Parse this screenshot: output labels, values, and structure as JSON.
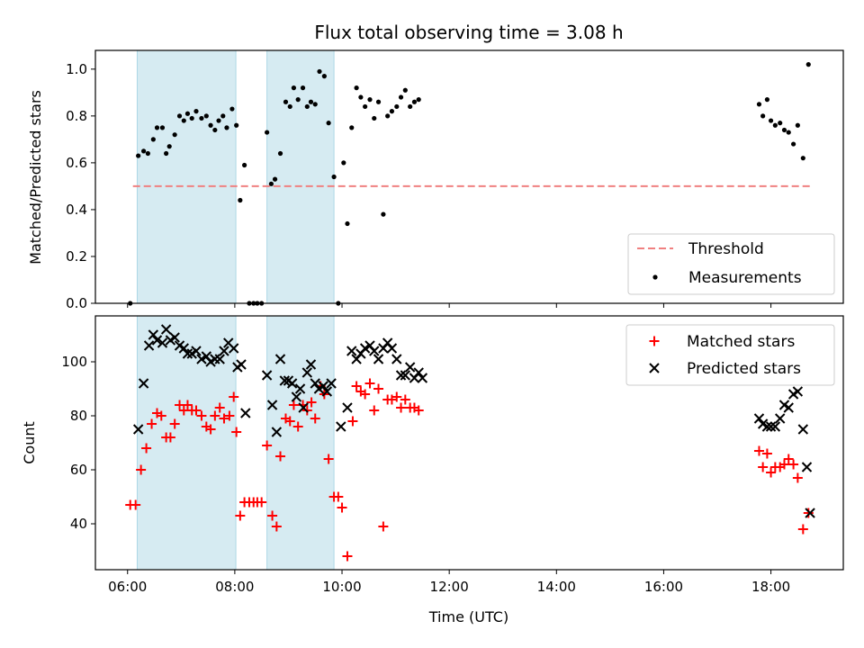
{
  "chart_data": {
    "title": "Flux total observing time = 3.08 h",
    "xlabel": "Time (UTC)",
    "x_ticks": [
      "06:00",
      "08:00",
      "10:00",
      "12:00",
      "14:00",
      "16:00",
      "18:00"
    ],
    "x_range_hours": [
      5.4,
      19.35
    ],
    "observing_windows": [
      [
        6.18,
        8.02
      ],
      [
        8.6,
        9.85
      ]
    ],
    "window_color": "#add8e6",
    "panels": [
      {
        "type": "scatter",
        "ylabel": "Matched/Predicted stars",
        "ylim": [
          0,
          1.08
        ],
        "y_ticks": [
          "0.0",
          "0.2",
          "0.4",
          "0.6",
          "0.8",
          "1.0"
        ],
        "y_tick_values": [
          0,
          0.2,
          0.4,
          0.6,
          0.8,
          1.0
        ],
        "legend_position": "lower-right",
        "threshold": {
          "name": "Threshold",
          "value": 0.5,
          "x_range": [
            6.1,
            18.75
          ],
          "color": "#f08080"
        },
        "measurements": {
          "name": "Measurements",
          "color": "#000000",
          "points": [
            [
              6.05,
              0.0
            ],
            [
              6.2,
              0.63
            ],
            [
              6.3,
              0.65
            ],
            [
              6.38,
              0.64
            ],
            [
              6.48,
              0.7
            ],
            [
              6.55,
              0.75
            ],
            [
              6.65,
              0.75
            ],
            [
              6.72,
              0.64
            ],
            [
              6.78,
              0.67
            ],
            [
              6.88,
              0.72
            ],
            [
              6.97,
              0.8
            ],
            [
              7.05,
              0.78
            ],
            [
              7.12,
              0.81
            ],
            [
              7.2,
              0.79
            ],
            [
              7.28,
              0.82
            ],
            [
              7.38,
              0.79
            ],
            [
              7.47,
              0.8
            ],
            [
              7.55,
              0.76
            ],
            [
              7.63,
              0.74
            ],
            [
              7.7,
              0.78
            ],
            [
              7.78,
              0.8
            ],
            [
              7.85,
              0.75
            ],
            [
              7.95,
              0.83
            ],
            [
              8.03,
              0.76
            ],
            [
              8.1,
              0.44
            ],
            [
              8.18,
              0.59
            ],
            [
              8.27,
              0.0
            ],
            [
              8.35,
              0.0
            ],
            [
              8.42,
              0.0
            ],
            [
              8.5,
              0.0
            ],
            [
              8.6,
              0.73
            ],
            [
              8.68,
              0.51
            ],
            [
              8.75,
              0.53
            ],
            [
              8.85,
              0.64
            ],
            [
              8.95,
              0.86
            ],
            [
              9.03,
              0.84
            ],
            [
              9.1,
              0.92
            ],
            [
              9.18,
              0.87
            ],
            [
              9.27,
              0.92
            ],
            [
              9.35,
              0.84
            ],
            [
              9.42,
              0.86
            ],
            [
              9.5,
              0.85
            ],
            [
              9.58,
              0.99
            ],
            [
              9.67,
              0.97
            ],
            [
              9.75,
              0.77
            ],
            [
              9.85,
              0.54
            ],
            [
              9.93,
              0.0
            ],
            [
              10.03,
              0.6
            ],
            [
              10.1,
              0.34
            ],
            [
              10.18,
              0.75
            ],
            [
              10.27,
              0.92
            ],
            [
              10.35,
              0.88
            ],
            [
              10.43,
              0.84
            ],
            [
              10.52,
              0.87
            ],
            [
              10.6,
              0.79
            ],
            [
              10.68,
              0.86
            ],
            [
              10.77,
              0.38
            ],
            [
              10.85,
              0.8
            ],
            [
              10.93,
              0.82
            ],
            [
              11.02,
              0.84
            ],
            [
              11.1,
              0.88
            ],
            [
              11.18,
              0.91
            ],
            [
              11.27,
              0.84
            ],
            [
              11.35,
              0.86
            ],
            [
              11.43,
              0.87
            ],
            [
              17.78,
              0.85
            ],
            [
              17.85,
              0.8
            ],
            [
              17.93,
              0.87
            ],
            [
              18.0,
              0.78
            ],
            [
              18.08,
              0.76
            ],
            [
              18.17,
              0.77
            ],
            [
              18.25,
              0.74
            ],
            [
              18.33,
              0.73
            ],
            [
              18.42,
              0.68
            ],
            [
              18.5,
              0.76
            ],
            [
              18.6,
              0.62
            ],
            [
              18.7,
              1.02
            ]
          ]
        }
      },
      {
        "type": "scatter",
        "ylabel": "Count",
        "ylim": [
          23,
          117
        ],
        "y_ticks": [
          "40",
          "60",
          "80",
          "100"
        ],
        "y_tick_values": [
          40,
          60,
          80,
          100
        ],
        "legend_position": "top-right",
        "series": [
          {
            "name": "Matched stars",
            "marker": "plus",
            "color": "#ff0000",
            "points": [
              [
                6.05,
                47
              ],
              [
                6.15,
                47
              ],
              [
                6.25,
                60
              ],
              [
                6.35,
                68
              ],
              [
                6.45,
                77
              ],
              [
                6.55,
                81
              ],
              [
                6.63,
                80
              ],
              [
                6.72,
                72
              ],
              [
                6.8,
                72
              ],
              [
                6.88,
                77
              ],
              [
                6.97,
                84
              ],
              [
                7.05,
                82
              ],
              [
                7.12,
                84
              ],
              [
                7.2,
                82
              ],
              [
                7.28,
                82
              ],
              [
                7.38,
                80
              ],
              [
                7.47,
                76
              ],
              [
                7.55,
                75
              ],
              [
                7.63,
                80
              ],
              [
                7.72,
                83
              ],
              [
                7.8,
                79
              ],
              [
                7.9,
                80
              ],
              [
                7.98,
                87
              ],
              [
                8.03,
                74
              ],
              [
                8.1,
                43
              ],
              [
                8.18,
                48
              ],
              [
                8.27,
                48
              ],
              [
                8.35,
                48
              ],
              [
                8.42,
                48
              ],
              [
                8.5,
                48
              ],
              [
                8.6,
                69
              ],
              [
                8.7,
                43
              ],
              [
                8.78,
                39
              ],
              [
                8.85,
                65
              ],
              [
                8.95,
                79
              ],
              [
                9.03,
                78
              ],
              [
                9.1,
                84
              ],
              [
                9.18,
                76
              ],
              [
                9.27,
                84
              ],
              [
                9.35,
                82
              ],
              [
                9.43,
                85
              ],
              [
                9.5,
                79
              ],
              [
                9.6,
                91
              ],
              [
                9.67,
                88
              ],
              [
                9.75,
                64
              ],
              [
                9.85,
                50
              ],
              [
                9.93,
                50
              ],
              [
                10.0,
                46
              ],
              [
                10.1,
                28
              ],
              [
                10.2,
                78
              ],
              [
                10.27,
                91
              ],
              [
                10.35,
                89
              ],
              [
                10.43,
                88
              ],
              [
                10.52,
                92
              ],
              [
                10.6,
                82
              ],
              [
                10.68,
                90
              ],
              [
                10.77,
                39
              ],
              [
                10.85,
                86
              ],
              [
                10.93,
                86
              ],
              [
                11.02,
                87
              ],
              [
                11.1,
                83
              ],
              [
                11.18,
                86
              ],
              [
                11.27,
                83
              ],
              [
                11.35,
                83
              ],
              [
                11.43,
                82
              ],
              [
                17.78,
                67
              ],
              [
                17.85,
                61
              ],
              [
                17.93,
                66
              ],
              [
                18.0,
                59
              ],
              [
                18.08,
                61
              ],
              [
                18.17,
                61
              ],
              [
                18.25,
                62
              ],
              [
                18.33,
                64
              ],
              [
                18.42,
                62
              ],
              [
                18.5,
                57
              ],
              [
                18.6,
                38
              ],
              [
                18.7,
                44
              ]
            ]
          },
          {
            "name": "Predicted stars",
            "marker": "x",
            "color": "#000000",
            "points": [
              [
                6.2,
                75
              ],
              [
                6.3,
                92
              ],
              [
                6.4,
                106
              ],
              [
                6.48,
                110
              ],
              [
                6.55,
                108
              ],
              [
                6.65,
                107
              ],
              [
                6.72,
                112
              ],
              [
                6.8,
                108
              ],
              [
                6.88,
                109
              ],
              [
                6.97,
                106
              ],
              [
                7.05,
                105
              ],
              [
                7.12,
                103
              ],
              [
                7.2,
                103
              ],
              [
                7.28,
                104
              ],
              [
                7.38,
                101
              ],
              [
                7.47,
                102
              ],
              [
                7.55,
                100
              ],
              [
                7.63,
                101
              ],
              [
                7.72,
                101
              ],
              [
                7.8,
                104
              ],
              [
                7.88,
                107
              ],
              [
                7.98,
                105
              ],
              [
                8.05,
                98
              ],
              [
                8.12,
                99
              ],
              [
                8.2,
                81
              ],
              [
                8.6,
                95
              ],
              [
                8.7,
                84
              ],
              [
                8.78,
                74
              ],
              [
                8.85,
                101
              ],
              [
                8.93,
                93
              ],
              [
                9.0,
                93
              ],
              [
                9.07,
                92
              ],
              [
                9.15,
                87
              ],
              [
                9.22,
                90
              ],
              [
                9.28,
                83
              ],
              [
                9.35,
                96
              ],
              [
                9.42,
                99
              ],
              [
                9.5,
                92
              ],
              [
                9.57,
                90
              ],
              [
                9.65,
                91
              ],
              [
                9.72,
                89
              ],
              [
                9.8,
                92
              ],
              [
                9.98,
                76
              ],
              [
                10.1,
                83
              ],
              [
                10.18,
                104
              ],
              [
                10.27,
                101
              ],
              [
                10.35,
                103
              ],
              [
                10.43,
                105
              ],
              [
                10.52,
                106
              ],
              [
                10.6,
                104
              ],
              [
                10.68,
                101
              ],
              [
                10.77,
                105
              ],
              [
                10.85,
                107
              ],
              [
                10.93,
                105
              ],
              [
                11.02,
                101
              ],
              [
                11.1,
                95
              ],
              [
                11.18,
                95
              ],
              [
                11.27,
                98
              ],
              [
                11.35,
                94
              ],
              [
                11.43,
                96
              ],
              [
                11.5,
                94
              ],
              [
                17.78,
                79
              ],
              [
                17.85,
                77
              ],
              [
                17.93,
                76
              ],
              [
                18.0,
                76
              ],
              [
                18.08,
                76
              ],
              [
                18.17,
                79
              ],
              [
                18.25,
                84
              ],
              [
                18.33,
                83
              ],
              [
                18.42,
                88
              ],
              [
                18.5,
                89
              ],
              [
                18.6,
                75
              ],
              [
                18.67,
                61
              ],
              [
                18.73,
                44
              ]
            ]
          }
        ]
      }
    ]
  }
}
